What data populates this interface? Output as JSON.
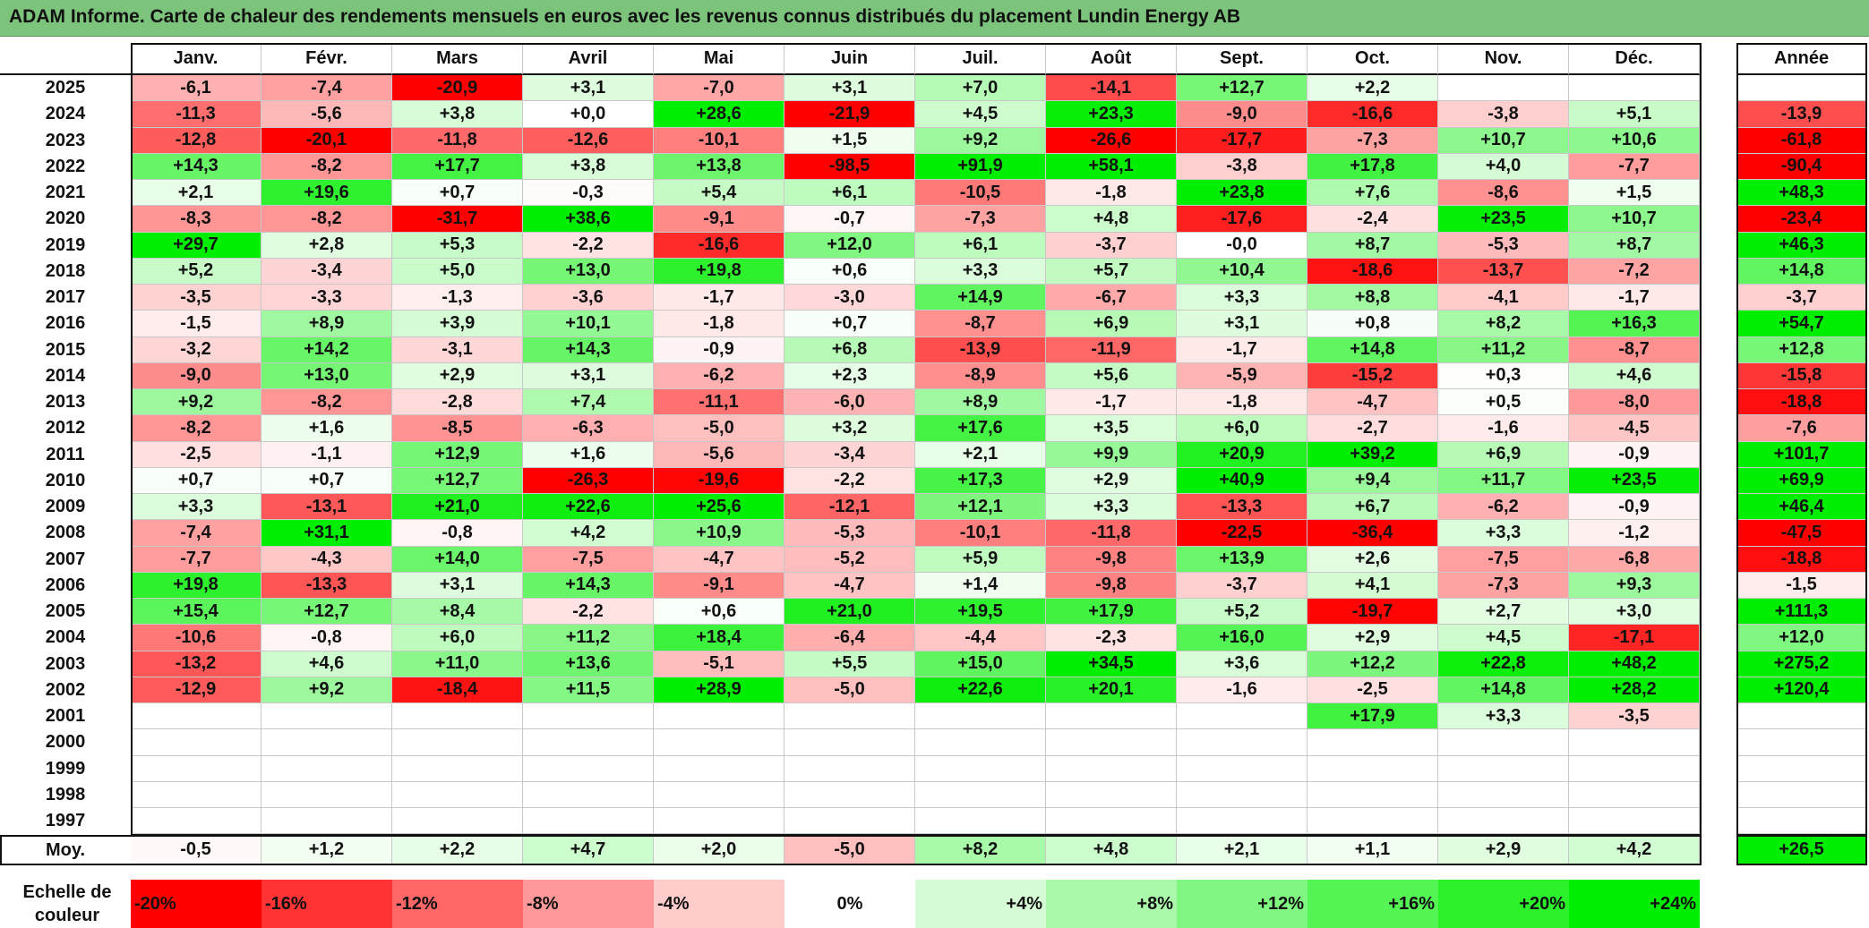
{
  "title": "ADAM Informe. Carte de chaleur des rendements mensuels en euros avec les revenus connus distribués du placement Lundin Energy AB",
  "colors": {
    "title_bar": "#7cc47c",
    "max_red": "#ff0000",
    "max_green": "#00ee00",
    "neutral": "#ffffff"
  },
  "chart_data": {
    "type": "heatmap",
    "title": "ADAM Informe. Carte de chaleur des rendements mensuels en euros avec les revenus connus distribués du placement Lundin Energy AB",
    "columns": [
      "Janv.",
      "Févr.",
      "Mars",
      "Avril",
      "Mai",
      "Juin",
      "Juil.",
      "Août",
      "Sept.",
      "Oct.",
      "Nov.",
      "Déc."
    ],
    "annual_column": "Année",
    "average_label": "Moy.",
    "rows": [
      {
        "year": "2025",
        "values": [
          "-6,1",
          "-7,4",
          "-20,9",
          "+3,1",
          "-7,0",
          "+3,1",
          "+7,0",
          "-14,1",
          "+12,7",
          "+2,2",
          "",
          ""
        ],
        "annual": ""
      },
      {
        "year": "2024",
        "values": [
          "-11,3",
          "-5,6",
          "+3,8",
          "+0,0",
          "+28,6",
          "-21,9",
          "+4,5",
          "+23,3",
          "-9,0",
          "-16,6",
          "-3,8",
          "+5,1"
        ],
        "annual": "-13,9"
      },
      {
        "year": "2023",
        "values": [
          "-12,8",
          "-20,1",
          "-11,8",
          "-12,6",
          "-10,1",
          "+1,5",
          "+9,2",
          "-26,6",
          "-17,7",
          "-7,3",
          "+10,7",
          "+10,6"
        ],
        "annual": "-61,8"
      },
      {
        "year": "2022",
        "values": [
          "+14,3",
          "-8,2",
          "+17,7",
          "+3,8",
          "+13,8",
          "-98,5",
          "+91,9",
          "+58,1",
          "-3,8",
          "+17,8",
          "+4,0",
          "-7,7"
        ],
        "annual": "-90,4"
      },
      {
        "year": "2021",
        "values": [
          "+2,1",
          "+19,6",
          "+0,7",
          "-0,3",
          "+5,4",
          "+6,1",
          "-10,5",
          "-1,8",
          "+23,8",
          "+7,6",
          "-8,6",
          "+1,5"
        ],
        "annual": "+48,3"
      },
      {
        "year": "2020",
        "values": [
          "-8,3",
          "-8,2",
          "-31,7",
          "+38,6",
          "-9,1",
          "-0,7",
          "-7,3",
          "+4,8",
          "-17,6",
          "-2,4",
          "+23,5",
          "+10,7"
        ],
        "annual": "-23,4"
      },
      {
        "year": "2019",
        "values": [
          "+29,7",
          "+2,8",
          "+5,3",
          "-2,2",
          "-16,6",
          "+12,0",
          "+6,1",
          "-3,7",
          "-0,0",
          "+8,7",
          "-5,3",
          "+8,7"
        ],
        "annual": "+46,3"
      },
      {
        "year": "2018",
        "values": [
          "+5,2",
          "-3,4",
          "+5,0",
          "+13,0",
          "+19,8",
          "+0,6",
          "+3,3",
          "+5,7",
          "+10,4",
          "-18,6",
          "-13,7",
          "-7,2"
        ],
        "annual": "+14,8"
      },
      {
        "year": "2017",
        "values": [
          "-3,5",
          "-3,3",
          "-1,3",
          "-3,6",
          "-1,7",
          "-3,0",
          "+14,9",
          "-6,7",
          "+3,3",
          "+8,8",
          "-4,1",
          "-1,7"
        ],
        "annual": "-3,7"
      },
      {
        "year": "2016",
        "values": [
          "-1,5",
          "+8,9",
          "+3,9",
          "+10,1",
          "-1,8",
          "+0,7",
          "-8,7",
          "+6,9",
          "+3,1",
          "+0,8",
          "+8,2",
          "+16,3"
        ],
        "annual": "+54,7"
      },
      {
        "year": "2015",
        "values": [
          "-3,2",
          "+14,2",
          "-3,1",
          "+14,3",
          "-0,9",
          "+6,8",
          "-13,9",
          "-11,9",
          "-1,7",
          "+14,8",
          "+11,2",
          "-8,7"
        ],
        "annual": "+12,8"
      },
      {
        "year": "2014",
        "values": [
          "-9,0",
          "+13,0",
          "+2,9",
          "+3,1",
          "-6,2",
          "+2,3",
          "-8,9",
          "+5,6",
          "-5,9",
          "-15,2",
          "+0,3",
          "+4,6"
        ],
        "annual": "-15,8"
      },
      {
        "year": "2013",
        "values": [
          "+9,2",
          "-8,2",
          "-2,8",
          "+7,4",
          "-11,1",
          "-6,0",
          "+8,9",
          "-1,7",
          "-1,8",
          "-4,7",
          "+0,5",
          "-8,0"
        ],
        "annual": "-18,8"
      },
      {
        "year": "2012",
        "values": [
          "-8,2",
          "+1,6",
          "-8,5",
          "-6,3",
          "-5,0",
          "+3,2",
          "+17,6",
          "+3,5",
          "+6,0",
          "-2,7",
          "-1,6",
          "-4,5"
        ],
        "annual": "-7,6"
      },
      {
        "year": "2011",
        "values": [
          "-2,5",
          "-1,1",
          "+12,9",
          "+1,6",
          "-5,6",
          "-3,4",
          "+2,1",
          "+9,9",
          "+20,9",
          "+39,2",
          "+6,9",
          "-0,9"
        ],
        "annual": "+101,7"
      },
      {
        "year": "2010",
        "values": [
          "+0,7",
          "+0,7",
          "+12,7",
          "-26,3",
          "-19,6",
          "-2,2",
          "+17,3",
          "+2,9",
          "+40,9",
          "+9,4",
          "+11,7",
          "+23,5"
        ],
        "annual": "+69,9"
      },
      {
        "year": "2009",
        "values": [
          "+3,3",
          "-13,1",
          "+21,0",
          "+22,6",
          "+25,6",
          "-12,1",
          "+12,1",
          "+3,3",
          "-13,3",
          "+6,7",
          "-6,2",
          "-0,9"
        ],
        "annual": "+46,4"
      },
      {
        "year": "2008",
        "values": [
          "-7,4",
          "+31,1",
          "-0,8",
          "+4,2",
          "+10,9",
          "-5,3",
          "-10,1",
          "-11,8",
          "-22,5",
          "-36,4",
          "+3,3",
          "-1,2"
        ],
        "annual": "-47,5"
      },
      {
        "year": "2007",
        "values": [
          "-7,7",
          "-4,3",
          "+14,0",
          "-7,5",
          "-4,7",
          "-5,2",
          "+5,9",
          "-9,8",
          "+13,9",
          "+2,6",
          "-7,5",
          "-6,8"
        ],
        "annual": "-18,8"
      },
      {
        "year": "2006",
        "values": [
          "+19,8",
          "-13,3",
          "+3,1",
          "+14,3",
          "-9,1",
          "-4,7",
          "+1,4",
          "-9,8",
          "-3,7",
          "+4,1",
          "-7,3",
          "+9,3"
        ],
        "annual": "-1,5"
      },
      {
        "year": "2005",
        "values": [
          "+15,4",
          "+12,7",
          "+8,4",
          "-2,2",
          "+0,6",
          "+21,0",
          "+19,5",
          "+17,9",
          "+5,2",
          "-19,7",
          "+2,7",
          "+3,0"
        ],
        "annual": "+111,3"
      },
      {
        "year": "2004",
        "values": [
          "-10,6",
          "-0,8",
          "+6,0",
          "+11,2",
          "+18,4",
          "-6,4",
          "-4,4",
          "-2,3",
          "+16,0",
          "+2,9",
          "+4,5",
          "-17,1"
        ],
        "annual": "+12,0"
      },
      {
        "year": "2003",
        "values": [
          "-13,2",
          "+4,6",
          "+11,0",
          "+13,6",
          "-5,1",
          "+5,5",
          "+15,0",
          "+34,5",
          "+3,6",
          "+12,2",
          "+22,8",
          "+48,2"
        ],
        "annual": "+275,2"
      },
      {
        "year": "2002",
        "values": [
          "-12,9",
          "+9,2",
          "-18,4",
          "+11,5",
          "+28,9",
          "-5,0",
          "+22,6",
          "+20,1",
          "-1,6",
          "-2,5",
          "+14,8",
          "+28,2"
        ],
        "annual": "+120,4"
      },
      {
        "year": "2001",
        "values": [
          "",
          "",
          "",
          "",
          "",
          "",
          "",
          "",
          "",
          "+17,9",
          "+3,3",
          "-3,5"
        ],
        "annual": ""
      },
      {
        "year": "2000",
        "values": [
          "",
          "",
          "",
          "",
          "",
          "",
          "",
          "",
          "",
          "",
          "",
          ""
        ],
        "annual": ""
      },
      {
        "year": "1999",
        "values": [
          "",
          "",
          "",
          "",
          "",
          "",
          "",
          "",
          "",
          "",
          "",
          ""
        ],
        "annual": ""
      },
      {
        "year": "1998",
        "values": [
          "",
          "",
          "",
          "",
          "",
          "",
          "",
          "",
          "",
          "",
          "",
          ""
        ],
        "annual": ""
      },
      {
        "year": "1997",
        "values": [
          "",
          "",
          "",
          "",
          "",
          "",
          "",
          "",
          "",
          "",
          "",
          ""
        ],
        "annual": ""
      }
    ],
    "average": {
      "values": [
        "-0,5",
        "+1,2",
        "+2,2",
        "+4,7",
        "+2,0",
        "-5,0",
        "+8,2",
        "+4,8",
        "+2,1",
        "+1,1",
        "+2,9",
        "+4,2"
      ],
      "annual": "+26,5"
    },
    "color_scale": {
      "label": "Echelle de\ncouleur",
      "stops": [
        "-20%",
        "-16%",
        "-12%",
        "-8%",
        "-4%",
        "0%",
        "+4%",
        "+8%",
        "+12%",
        "+16%",
        "+20%",
        "+24%"
      ],
      "stop_values": [
        -20,
        -16,
        -12,
        -8,
        -4,
        0,
        4,
        8,
        12,
        16,
        20,
        24
      ]
    }
  }
}
